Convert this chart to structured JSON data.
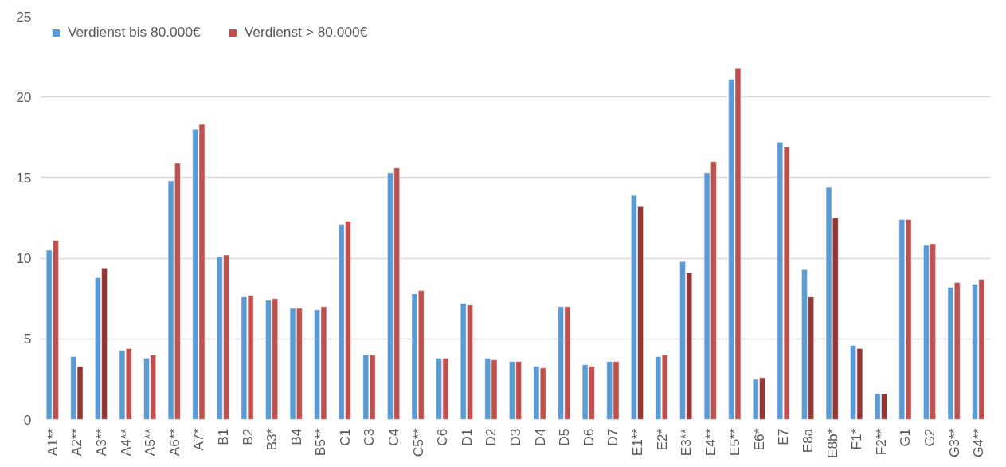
{
  "chart_data": {
    "type": "bar",
    "categories": [
      "A1**",
      "A2**",
      "A3**",
      "A4**",
      "A5**",
      "A6**",
      "A7*",
      "B1",
      "B2",
      "B3*",
      "B4",
      "B5**",
      "C1",
      "C3",
      "C4",
      "C5**",
      "C6",
      "D1",
      "D2",
      "D3",
      "D4",
      "D5",
      "D6",
      "D7",
      "E1**",
      "E2*",
      "E3**",
      "E4**",
      "E5**",
      "E6*",
      "E7",
      "E8a",
      "E8b*",
      "F1*",
      "F2**",
      "G1",
      "G2",
      "G3**",
      "G4**"
    ],
    "series": [
      {
        "name": "Verdienst bis 80.000€",
        "color": "#5b9bd5",
        "values": [
          10.5,
          3.9,
          8.8,
          4.3,
          3.8,
          14.8,
          18.0,
          10.1,
          7.6,
          7.4,
          6.9,
          6.8,
          12.1,
          4.0,
          15.3,
          7.8,
          3.8,
          7.2,
          3.8,
          3.6,
          3.3,
          7.0,
          3.4,
          3.6,
          13.9,
          3.9,
          9.8,
          15.3,
          21.1,
          2.5,
          17.2,
          9.3,
          14.4,
          4.6,
          1.6,
          12.4,
          10.8,
          8.2,
          8.4
        ]
      },
      {
        "name": "Verdienst > 80.000€",
        "color": "#c0504d",
        "colors": [
          "#c0504d",
          "#943634",
          "#943634",
          "#c0504d",
          "#c0504d",
          "#c0504d",
          "#c0504d",
          "#c0504d",
          "#c0504d",
          "#c0504d",
          "#c0504d",
          "#c0504d",
          "#c0504d",
          "#c0504d",
          "#c0504d",
          "#c0504d",
          "#c0504d",
          "#c0504d",
          "#c0504d",
          "#c0504d",
          "#c0504d",
          "#c0504d",
          "#c0504d",
          "#c0504d",
          "#943634",
          "#c0504d",
          "#943634",
          "#c0504d",
          "#c0504d",
          "#943634",
          "#c0504d",
          "#943634",
          "#943634",
          "#943634",
          "#943634",
          "#c0504d",
          "#c0504d",
          "#c0504d",
          "#c0504d"
        ],
        "values": [
          11.1,
          3.3,
          9.4,
          4.4,
          4.0,
          15.9,
          18.3,
          10.2,
          7.7,
          7.5,
          6.9,
          7.0,
          12.3,
          4.0,
          15.6,
          8.0,
          3.8,
          7.1,
          3.7,
          3.6,
          3.2,
          7.0,
          3.3,
          3.6,
          13.2,
          4.0,
          9.1,
          16.0,
          21.8,
          2.6,
          16.9,
          7.6,
          12.5,
          4.4,
          1.6,
          12.4,
          10.9,
          8.5,
          8.7
        ]
      }
    ],
    "ylim": [
      0,
      25
    ],
    "yticks": [
      0,
      5,
      10,
      15,
      20,
      25
    ],
    "grid": "y",
    "legend": "top left"
  }
}
